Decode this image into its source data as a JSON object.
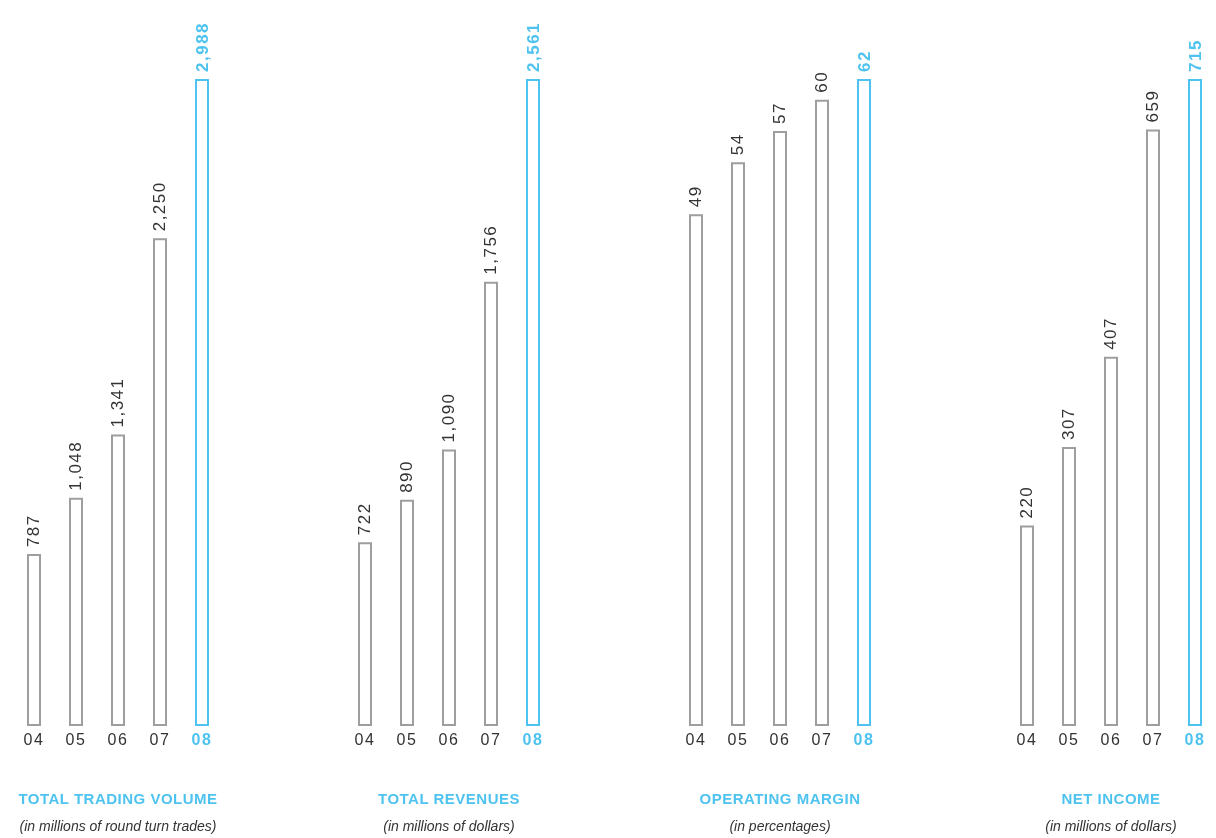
{
  "chart_data": [
    {
      "type": "bar",
      "title": "TOTAL TRADING VOLUME",
      "subtitle": "(in millions of round turn trades)",
      "categories": [
        "04",
        "05",
        "06",
        "07",
        "08"
      ],
      "values": [
        787,
        1048,
        1341,
        2250,
        2988
      ],
      "value_labels": [
        "787",
        "1,048",
        "1,341",
        "2,250",
        "2,988"
      ],
      "colors": [
        "#9e9e9e",
        "#9e9e9e",
        "#9e9e9e",
        "#9e9e9e",
        "#4fc3ef"
      ]
    },
    {
      "type": "bar",
      "title": "TOTAL REVENUES",
      "subtitle": "(in millions of dollars)",
      "categories": [
        "04",
        "05",
        "06",
        "07",
        "08"
      ],
      "values": [
        722,
        890,
        1090,
        1756,
        2561
      ],
      "value_labels": [
        "722",
        "890",
        "1,090",
        "1,756",
        "2,561"
      ],
      "colors": [
        "#9e9e9e",
        "#9e9e9e",
        "#9e9e9e",
        "#9e9e9e",
        "#4fc3ef"
      ]
    },
    {
      "type": "bar",
      "title": "OPERATING MARGIN",
      "subtitle": "(in percentages)",
      "categories": [
        "04",
        "05",
        "06",
        "07",
        "08"
      ],
      "values": [
        49,
        54,
        57,
        60,
        62
      ],
      "colors": [
        "#9e9e9e",
        "#9e9e9e",
        "#9e9e9e",
        "#9e9e9e",
        "#4fc3ef"
      ],
      "data_labels": true
    },
    {
      "type": "bar",
      "title": "NET INCOME",
      "subtitle": "(in millions of dollars)",
      "categories": [
        "04",
        "05",
        "06",
        "07",
        "08"
      ],
      "values": [
        220,
        307,
        407,
        659,
        715
      ],
      "colors": [
        "#9e9e9e",
        "#9e9e9e",
        "#9e9e9e",
        "#9e9e9e",
        "#4fc3ef"
      ],
      "data_labels": true
    }
  ]
}
